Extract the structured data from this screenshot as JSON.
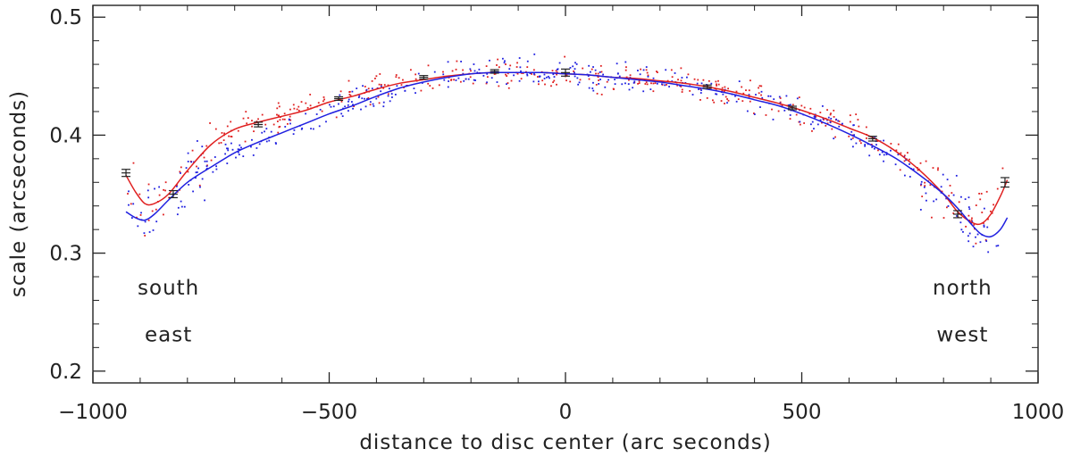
{
  "chart_data": {
    "type": "scatter",
    "title": "",
    "xlabel": "distance to disc center (arc seconds)",
    "ylabel": "scale (arcseconds)",
    "xlim": [
      -1000,
      1000
    ],
    "ylim": [
      0.19,
      0.51
    ],
    "x_ticks": [
      {
        "value": -1000,
        "label": "−1000"
      },
      {
        "value": -500,
        "label": "−500"
      },
      {
        "value": 0,
        "label": "0"
      },
      {
        "value": 500,
        "label": "500"
      },
      {
        "value": 1000,
        "label": "1000"
      }
    ],
    "y_ticks": [
      {
        "value": 0.2,
        "label": "0.2"
      },
      {
        "value": 0.3,
        "label": "0.3"
      },
      {
        "value": 0.4,
        "label": "0.4"
      },
      {
        "value": 0.5,
        "label": "0.5"
      }
    ],
    "grid": false,
    "annotations": [
      {
        "text": "south",
        "x": -840,
        "y": 0.265
      },
      {
        "text": "east",
        "x": -840,
        "y": 0.225
      },
      {
        "text": "north",
        "x": 840,
        "y": 0.265
      },
      {
        "text": "west",
        "x": 840,
        "y": 0.225
      }
    ],
    "series": [
      {
        "color": "#e02020",
        "x": [
          -930,
          -910,
          -890,
          -870,
          -840,
          -800,
          -750,
          -700,
          -650,
          -600,
          -550,
          -500,
          -450,
          -400,
          -350,
          -300,
          -250,
          -200,
          -150,
          -100,
          -50,
          0,
          50,
          100,
          150,
          200,
          250,
          300,
          350,
          400,
          450,
          500,
          550,
          600,
          650,
          700,
          750,
          800,
          830,
          860,
          880,
          900,
          920,
          935
        ],
        "y": [
          0.366,
          0.352,
          0.342,
          0.342,
          0.35,
          0.37,
          0.392,
          0.405,
          0.411,
          0.416,
          0.421,
          0.428,
          0.433,
          0.439,
          0.444,
          0.447,
          0.45,
          0.452,
          0.453,
          0.453,
          0.453,
          0.452,
          0.451,
          0.449,
          0.448,
          0.446,
          0.444,
          0.441,
          0.437,
          0.432,
          0.427,
          0.421,
          0.414,
          0.406,
          0.398,
          0.386,
          0.37,
          0.35,
          0.335,
          0.326,
          0.325,
          0.333,
          0.348,
          0.362
        ]
      },
      {
        "color": "#2020e0",
        "x": [
          -930,
          -910,
          -890,
          -870,
          -840,
          -800,
          -750,
          -700,
          -650,
          -600,
          -550,
          -500,
          -450,
          -400,
          -350,
          -300,
          -250,
          -200,
          -150,
          -100,
          -50,
          0,
          50,
          100,
          150,
          200,
          250,
          300,
          350,
          400,
          450,
          500,
          550,
          600,
          650,
          700,
          750,
          800,
          830,
          860,
          880,
          900,
          920,
          935
        ],
        "y": [
          0.335,
          0.33,
          0.328,
          0.333,
          0.345,
          0.36,
          0.373,
          0.385,
          0.394,
          0.402,
          0.41,
          0.418,
          0.425,
          0.433,
          0.44,
          0.445,
          0.449,
          0.452,
          0.453,
          0.453,
          0.453,
          0.452,
          0.451,
          0.449,
          0.447,
          0.445,
          0.442,
          0.439,
          0.435,
          0.43,
          0.425,
          0.418,
          0.41,
          0.401,
          0.391,
          0.38,
          0.366,
          0.35,
          0.338,
          0.324,
          0.316,
          0.314,
          0.32,
          0.33
        ]
      }
    ],
    "error_bars": {
      "color": "#222222",
      "points": [
        {
          "x": -930,
          "y": 0.368,
          "err": 0.003
        },
        {
          "x": -830,
          "y": 0.35,
          "err": 0.003
        },
        {
          "x": -650,
          "y": 0.409,
          "err": 0.002
        },
        {
          "x": -480,
          "y": 0.431,
          "err": 0.0015
        },
        {
          "x": -300,
          "y": 0.449,
          "err": 0.0015
        },
        {
          "x": -150,
          "y": 0.454,
          "err": 0.0015
        },
        {
          "x": 0,
          "y": 0.453,
          "err": 0.003
        },
        {
          "x": 300,
          "y": 0.441,
          "err": 0.0015
        },
        {
          "x": 480,
          "y": 0.423,
          "err": 0.0015
        },
        {
          "x": 650,
          "y": 0.397,
          "err": 0.002
        },
        {
          "x": 830,
          "y": 0.333,
          "err": 0.003
        },
        {
          "x": 930,
          "y": 0.36,
          "err": 0.004
        }
      ]
    }
  }
}
